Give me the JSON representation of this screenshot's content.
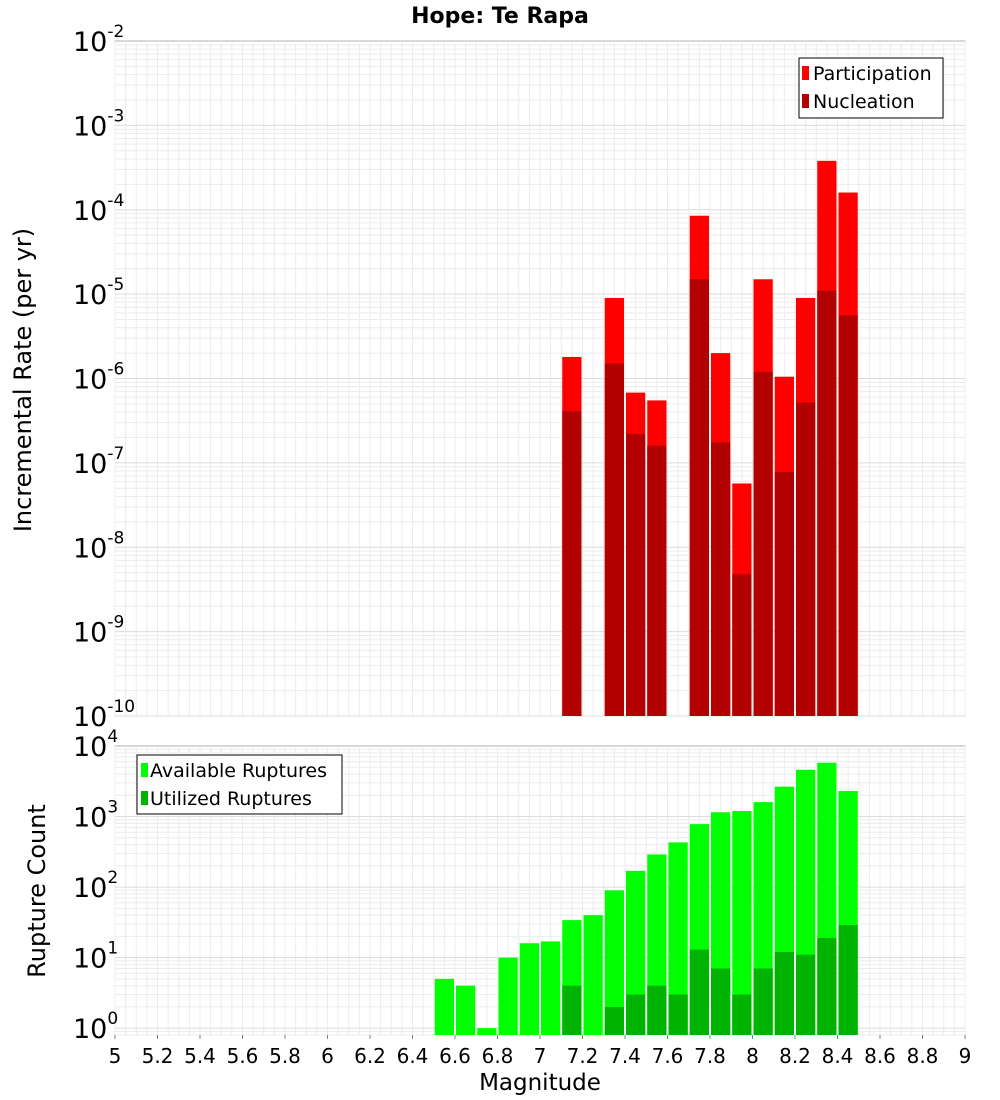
{
  "title": "Hope: Te Rapa",
  "chart_data": [
    {
      "type": "bar",
      "yscale": "log",
      "ylabel": "Incremental Rate (per yr)",
      "ylim": [
        1e-10,
        0.01
      ],
      "xlim": [
        5,
        9
      ],
      "bar_width": 0.1,
      "grid": true,
      "legend_position": "top-right",
      "ytick_labels": [
        {
          "base": "10",
          "exp": "-10",
          "value": 1e-10
        },
        {
          "base": "10",
          "exp": "-9",
          "value": 1e-09
        },
        {
          "base": "10",
          "exp": "-8",
          "value": 1e-08
        },
        {
          "base": "10",
          "exp": "-7",
          "value": 1e-07
        },
        {
          "base": "10",
          "exp": "-6",
          "value": 1e-06
        },
        {
          "base": "10",
          "exp": "-5",
          "value": 1e-05
        },
        {
          "base": "10",
          "exp": "-4",
          "value": 0.0001
        },
        {
          "base": "10",
          "exp": "-3",
          "value": 0.001
        },
        {
          "base": "10",
          "exp": "-2",
          "value": 0.01
        }
      ],
      "series": [
        {
          "name": "Participation",
          "color": "#ff0000",
          "points": [
            {
              "x": 7.15,
              "y": 1.8e-06
            },
            {
              "x": 7.35,
              "y": 9e-06
            },
            {
              "x": 7.45,
              "y": 6.8e-07
            },
            {
              "x": 7.55,
              "y": 5.5e-07
            },
            {
              "x": 7.75,
              "y": 8.5e-05
            },
            {
              "x": 7.85,
              "y": 2e-06
            },
            {
              "x": 7.95,
              "y": 5.7e-08
            },
            {
              "x": 8.05,
              "y": 1.5e-05
            },
            {
              "x": 8.15,
              "y": 1.05e-06
            },
            {
              "x": 8.25,
              "y": 9e-06
            },
            {
              "x": 8.35,
              "y": 0.00038
            },
            {
              "x": 8.45,
              "y": 0.00016
            }
          ]
        },
        {
          "name": "Nucleation",
          "color": "#b30000",
          "points": [
            {
              "x": 7.15,
              "y": 4.1e-07
            },
            {
              "x": 7.35,
              "y": 1.5e-06
            },
            {
              "x": 7.45,
              "y": 2.2e-07
            },
            {
              "x": 7.55,
              "y": 1.6e-07
            },
            {
              "x": 7.75,
              "y": 1.5e-05
            },
            {
              "x": 7.85,
              "y": 1.75e-07
            },
            {
              "x": 7.95,
              "y": 4.8e-09
            },
            {
              "x": 8.05,
              "y": 1.2e-06
            },
            {
              "x": 8.15,
              "y": 7.8e-08
            },
            {
              "x": 8.25,
              "y": 5.2e-07
            },
            {
              "x": 8.35,
              "y": 1.1e-05
            },
            {
              "x": 8.45,
              "y": 5.6e-06
            }
          ]
        }
      ]
    },
    {
      "type": "bar",
      "yscale": "log",
      "ylabel": "Rupture Count",
      "xlabel": "Magnitude",
      "ylim": [
        0.8,
        10000
      ],
      "xlim": [
        5,
        9
      ],
      "bar_width": 0.1,
      "grid": true,
      "legend_position": "top-left",
      "ytick_labels": [
        {
          "base": "10",
          "exp": "0",
          "value": 1
        },
        {
          "base": "10",
          "exp": "1",
          "value": 10
        },
        {
          "base": "10",
          "exp": "2",
          "value": 100
        },
        {
          "base": "10",
          "exp": "3",
          "value": 1000
        },
        {
          "base": "10",
          "exp": "4",
          "value": 10000
        }
      ],
      "xticks": [
        "5",
        "5.2",
        "5.4",
        "5.6",
        "5.8",
        "6",
        "6.2",
        "6.4",
        "6.6",
        "6.8",
        "7",
        "7.2",
        "7.4",
        "7.6",
        "7.8",
        "8",
        "8.2",
        "8.4",
        "8.6",
        "8.8",
        "9"
      ],
      "series": [
        {
          "name": "Available Ruptures",
          "color": "#00ff00",
          "points": [
            {
              "x": 6.55,
              "y": 5
            },
            {
              "x": 6.65,
              "y": 4
            },
            {
              "x": 6.75,
              "y": 1
            },
            {
              "x": 6.85,
              "y": 10
            },
            {
              "x": 6.95,
              "y": 16
            },
            {
              "x": 7.05,
              "y": 17
            },
            {
              "x": 7.15,
              "y": 34
            },
            {
              "x": 7.25,
              "y": 40
            },
            {
              "x": 7.35,
              "y": 90
            },
            {
              "x": 7.45,
              "y": 170
            },
            {
              "x": 7.55,
              "y": 290
            },
            {
              "x": 7.65,
              "y": 430
            },
            {
              "x": 7.75,
              "y": 780
            },
            {
              "x": 7.85,
              "y": 1150
            },
            {
              "x": 7.95,
              "y": 1200
            },
            {
              "x": 8.05,
              "y": 1600
            },
            {
              "x": 8.15,
              "y": 2650
            },
            {
              "x": 8.25,
              "y": 4600
            },
            {
              "x": 8.35,
              "y": 5800
            },
            {
              "x": 8.45,
              "y": 2300
            }
          ]
        },
        {
          "name": "Utilized Ruptures",
          "color": "#00b300",
          "points": [
            {
              "x": 7.15,
              "y": 4
            },
            {
              "x": 7.35,
              "y": 2
            },
            {
              "x": 7.45,
              "y": 3
            },
            {
              "x": 7.55,
              "y": 4
            },
            {
              "x": 7.65,
              "y": 3
            },
            {
              "x": 7.75,
              "y": 13
            },
            {
              "x": 7.85,
              "y": 7
            },
            {
              "x": 7.95,
              "y": 3
            },
            {
              "x": 8.05,
              "y": 7
            },
            {
              "x": 8.15,
              "y": 12
            },
            {
              "x": 8.25,
              "y": 11
            },
            {
              "x": 8.35,
              "y": 19
            },
            {
              "x": 8.45,
              "y": 29
            }
          ]
        }
      ]
    }
  ]
}
